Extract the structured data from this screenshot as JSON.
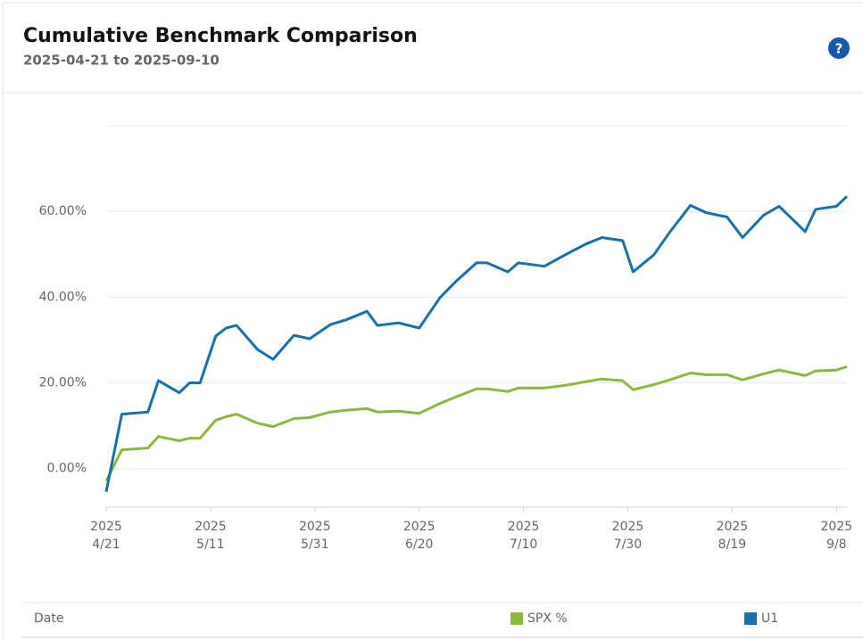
{
  "chart_data": {
    "type": "line",
    "title": "Cumulative Benchmark Comparison",
    "subtitle": "2025-04-21 to 2025-09-10",
    "help_icon": "?",
    "x_label": "Date",
    "x": [
      "2025-04-21",
      "2025-04-24",
      "2025-04-29",
      "2025-05-01",
      "2025-05-05",
      "2025-05-07",
      "2025-05-09",
      "2025-05-12",
      "2025-05-14",
      "2025-05-16",
      "2025-05-20",
      "2025-05-23",
      "2025-05-27",
      "2025-05-30",
      "2025-06-03",
      "2025-06-06",
      "2025-06-10",
      "2025-06-12",
      "2025-06-16",
      "2025-06-20",
      "2025-06-24",
      "2025-06-27",
      "2025-07-01",
      "2025-07-03",
      "2025-07-07",
      "2025-07-09",
      "2025-07-14",
      "2025-07-18",
      "2025-07-22",
      "2025-07-25",
      "2025-07-29",
      "2025-07-31",
      "2025-08-04",
      "2025-08-07",
      "2025-08-11",
      "2025-08-14",
      "2025-08-18",
      "2025-08-21",
      "2025-08-25",
      "2025-08-28",
      "2025-09-02",
      "2025-09-04",
      "2025-09-08",
      "2025-09-10"
    ],
    "series": [
      {
        "name": "SPX %",
        "color": "#8db83f",
        "values": [
          -2.9,
          4.4,
          4.8,
          7.5,
          6.5,
          7.1,
          7.1,
          11.3,
          12.1,
          12.7,
          10.6,
          9.8,
          11.7,
          11.9,
          13.2,
          13.6,
          14,
          13.2,
          13.4,
          12.9,
          15.2,
          16.7,
          18.6,
          18.6,
          18,
          18.8,
          18.8,
          19.4,
          20.3,
          20.9,
          20.5,
          18.4,
          19.6,
          20.7,
          22.3,
          21.9,
          21.9,
          20.7,
          22.1,
          23,
          21.7,
          22.8,
          23,
          23.8
        ]
      },
      {
        "name": "U1",
        "color": "#1a6fad",
        "values": [
          -5.4,
          12.7,
          13.2,
          20.5,
          17.7,
          20,
          20,
          30.9,
          32.8,
          33.4,
          27.8,
          25.5,
          31.1,
          30.3,
          33.6,
          34.7,
          36.7,
          33.4,
          34,
          32.8,
          39.9,
          43.6,
          48,
          48,
          45.9,
          48,
          47.2,
          49.9,
          52.4,
          53.9,
          53.2,
          45.9,
          49.9,
          55.1,
          61.4,
          59.7,
          58.7,
          53.9,
          59.1,
          61.2,
          55.3,
          60.5,
          61.2,
          63.5
        ]
      }
    ],
    "xlim": [
      "2025-04-21",
      "2025-09-10"
    ],
    "xticks": [
      {
        "value": "2025-04-21",
        "label": [
          "2025",
          "4/21"
        ]
      },
      {
        "value": "2025-05-11",
        "label": [
          "2025",
          "5/11"
        ]
      },
      {
        "value": "2025-05-31",
        "label": [
          "2025",
          "5/31"
        ]
      },
      {
        "value": "2025-06-20",
        "label": [
          "2025",
          "6/20"
        ]
      },
      {
        "value": "2025-07-10",
        "label": [
          "2025",
          "7/10"
        ]
      },
      {
        "value": "2025-07-30",
        "label": [
          "2025",
          "7/30"
        ]
      },
      {
        "value": "2025-08-19",
        "label": [
          "2025",
          "8/19"
        ]
      },
      {
        "value": "2025-09-08",
        "label": [
          "2025",
          "9/8"
        ]
      }
    ],
    "ylim": [
      -9,
      80
    ],
    "yticks": [
      {
        "value": 0,
        "label": "0.00%"
      },
      {
        "value": 20,
        "label": "20.00%"
      },
      {
        "value": 40,
        "label": "40.00%"
      },
      {
        "value": 60,
        "label": "60.00%"
      }
    ],
    "grid": true
  }
}
